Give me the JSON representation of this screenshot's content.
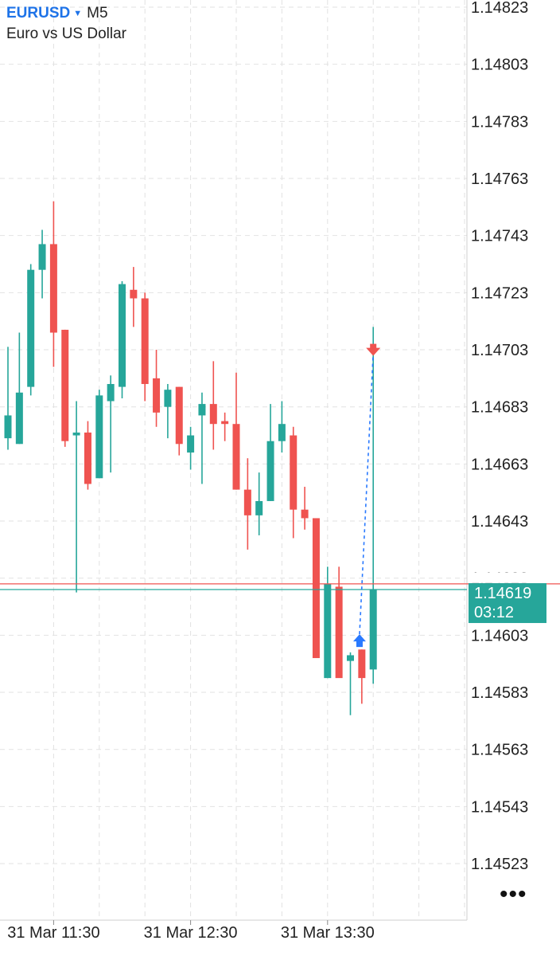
{
  "header": {
    "symbol": "EURUSD",
    "timeframe": "M5",
    "description": "Euro vs US Dollar"
  },
  "menu": {
    "icon": "more-dots-icon",
    "label": "•••"
  },
  "colors": {
    "bull": "#26a69a",
    "bear": "#ef5350",
    "grid": "#e2e2e2",
    "axis": "#cfcfcf",
    "buy_arrow": "#2979ff",
    "sell_arrow": "#ef5350",
    "symbol": "#1e73e8"
  },
  "chart_data": {
    "type": "candlestick",
    "y_ticks": [
      "1.14823",
      "1.14803",
      "1.14783",
      "1.14763",
      "1.14743",
      "1.14723",
      "1.14703",
      "1.14683",
      "1.14663",
      "1.14643",
      "1.14623",
      "1.14603",
      "1.14583",
      "1.14563",
      "1.14543",
      "1.14523"
    ],
    "x_ticks": [
      {
        "label": "31 Mar 11:30",
        "index": 4
      },
      {
        "label": "31 Mar 12:30",
        "index": 16
      },
      {
        "label": "31 Mar 13:30",
        "index": 28
      }
    ],
    "ylim": [
      1.14514,
      1.14825
    ],
    "grid": true,
    "current_price": {
      "bid": 1.14619,
      "ask": 1.14621,
      "label": "1.14619",
      "countdown": "03:12"
    },
    "candles": [
      {
        "o": 1.14672,
        "h": 1.14704,
        "l": 1.14668,
        "c": 1.1468
      },
      {
        "o": 1.1467,
        "h": 1.14709,
        "l": 1.1467,
        "c": 1.14688
      },
      {
        "o": 1.1469,
        "h": 1.14733,
        "l": 1.14687,
        "c": 1.14731
      },
      {
        "o": 1.14731,
        "h": 1.14745,
        "l": 1.14721,
        "c": 1.1474
      },
      {
        "o": 1.1474,
        "h": 1.14755,
        "l": 1.14697,
        "c": 1.14709
      },
      {
        "o": 1.1471,
        "h": 1.1471,
        "l": 1.14669,
        "c": 1.14671
      },
      {
        "o": 1.14673,
        "h": 1.14685,
        "l": 1.14618,
        "c": 1.14674
      },
      {
        "o": 1.14674,
        "h": 1.14678,
        "l": 1.14654,
        "c": 1.14656
      },
      {
        "o": 1.14658,
        "h": 1.14689,
        "l": 1.14658,
        "c": 1.14687
      },
      {
        "o": 1.14685,
        "h": 1.14694,
        "l": 1.1466,
        "c": 1.14691
      },
      {
        "o": 1.1469,
        "h": 1.14727,
        "l": 1.14686,
        "c": 1.14726
      },
      {
        "o": 1.14724,
        "h": 1.14732,
        "l": 1.14711,
        "c": 1.14721
      },
      {
        "o": 1.14721,
        "h": 1.14723,
        "l": 1.14685,
        "c": 1.14691
      },
      {
        "o": 1.14693,
        "h": 1.14703,
        "l": 1.14676,
        "c": 1.14681
      },
      {
        "o": 1.14683,
        "h": 1.14691,
        "l": 1.14672,
        "c": 1.14689
      },
      {
        "o": 1.1469,
        "h": 1.1469,
        "l": 1.14666,
        "c": 1.1467
      },
      {
        "o": 1.14667,
        "h": 1.14676,
        "l": 1.14661,
        "c": 1.14673
      },
      {
        "o": 1.1468,
        "h": 1.14688,
        "l": 1.14656,
        "c": 1.14684
      },
      {
        "o": 1.14684,
        "h": 1.14699,
        "l": 1.14668,
        "c": 1.14677
      },
      {
        "o": 1.14678,
        "h": 1.14681,
        "l": 1.14671,
        "c": 1.14677
      },
      {
        "o": 1.14677,
        "h": 1.14695,
        "l": 1.14654,
        "c": 1.14654
      },
      {
        "o": 1.14654,
        "h": 1.14665,
        "l": 1.14633,
        "c": 1.14645
      },
      {
        "o": 1.14645,
        "h": 1.1466,
        "l": 1.14638,
        "c": 1.1465
      },
      {
        "o": 1.1465,
        "h": 1.14684,
        "l": 1.1465,
        "c": 1.14671
      },
      {
        "o": 1.14671,
        "h": 1.14685,
        "l": 1.14667,
        "c": 1.14677
      },
      {
        "o": 1.14673,
        "h": 1.14676,
        "l": 1.14637,
        "c": 1.14647
      },
      {
        "o": 1.14647,
        "h": 1.14655,
        "l": 1.1464,
        "c": 1.14644
      },
      {
        "o": 1.14644,
        "h": 1.14644,
        "l": 1.14595,
        "c": 1.14595
      },
      {
        "o": 1.14588,
        "h": 1.14627,
        "l": 1.14588,
        "c": 1.14621
      },
      {
        "o": 1.1462,
        "h": 1.14627,
        "l": 1.1459,
        "c": 1.14588
      },
      {
        "o": 1.14594,
        "h": 1.14597,
        "l": 1.14575,
        "c": 1.14596
      },
      {
        "o": 1.14598,
        "h": 1.14598,
        "l": 1.14579,
        "c": 1.14588
      },
      {
        "o": 1.14591,
        "h": 1.14711,
        "l": 1.14586,
        "c": 1.14619
      }
    ],
    "trade": {
      "buy": {
        "index": 30.8,
        "price": 1.146
      },
      "sell": {
        "index": 32,
        "price": 1.14702
      }
    }
  }
}
